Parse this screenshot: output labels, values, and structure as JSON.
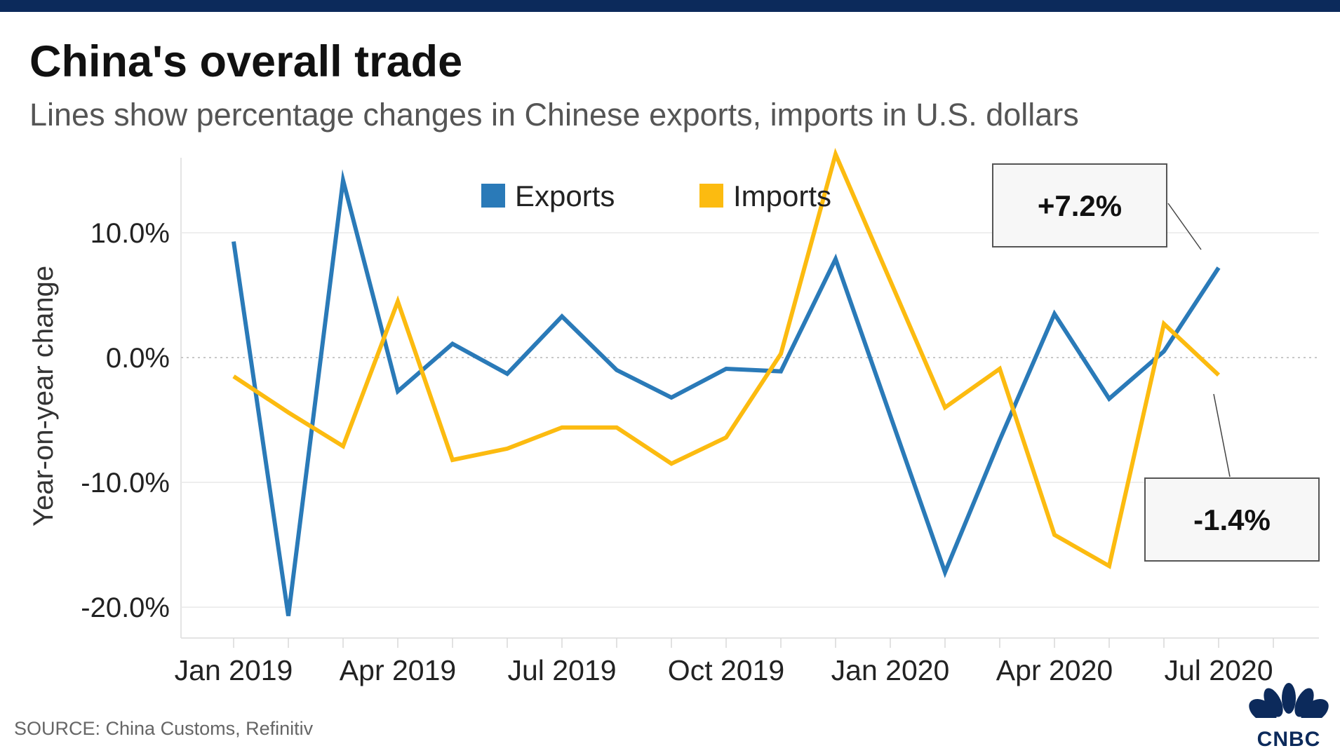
{
  "header": {
    "title": "China's overall trade",
    "subtitle": "Lines show percentage changes in Chinese exports, imports in U.S. dollars"
  },
  "footer": {
    "source": "SOURCE: China Customs, Refinitiv",
    "logo_text": "CNBC"
  },
  "colors": {
    "top_bar": "#0c2a5b",
    "exports": "#2a7ab8",
    "imports": "#fcbb10",
    "grid": "#e9e9e9",
    "zero_line": "#c8c8c8"
  },
  "chart_data": {
    "type": "line",
    "title": "China's overall trade",
    "subtitle": "Lines show percentage changes in Chinese exports, imports in U.S. dollars",
    "ylabel": "Year-on-year change",
    "xlabel": "",
    "ylim": [
      -22.5,
      16
    ],
    "yticks": [
      10,
      0,
      -10,
      -20
    ],
    "ytick_labels": [
      "10.0%",
      "0.0%",
      "-10.0%",
      "-20.0%"
    ],
    "x": [
      "2019-01",
      "2019-02",
      "2019-03",
      "2019-04",
      "2019-05",
      "2019-06",
      "2019-07",
      "2019-08",
      "2019-09",
      "2019-10",
      "2019-11",
      "2019-12",
      "2020-01",
      "2020-02",
      "2020-03",
      "2020-04",
      "2020-05",
      "2020-06",
      "2020-07"
    ],
    "xticks": [
      "Jan 2019",
      "Apr 2019",
      "Jul 2019",
      "Oct 2019",
      "Jan 2020",
      "Apr 2020",
      "Jul 2020"
    ],
    "series": [
      {
        "name": "Exports",
        "color": "#2a7ab8",
        "values": [
          9.3,
          -20.7,
          14.2,
          -2.7,
          1.1,
          -1.3,
          3.3,
          -1.0,
          -3.2,
          -0.9,
          -1.1,
          7.9,
          null,
          -17.2,
          -6.6,
          3.5,
          -3.3,
          0.5,
          7.2
        ]
      },
      {
        "name": "Imports",
        "color": "#fcbb10",
        "values": [
          -1.5,
          -4.4,
          -7.1,
          4.5,
          -8.2,
          -7.3,
          -5.6,
          -5.6,
          -8.5,
          -6.4,
          0.3,
          16.3,
          null,
          -4.0,
          -0.9,
          -14.2,
          -16.7,
          2.7,
          -1.4
        ]
      }
    ],
    "legend": {
      "position": "top-center",
      "entries": [
        "Exports",
        "Imports"
      ]
    },
    "annotations": [
      {
        "text": "+7.2%",
        "series": "Exports",
        "x": "2020-07"
      },
      {
        "text": "-1.4%",
        "series": "Imports",
        "x": "2020-07"
      }
    ],
    "grid": true
  }
}
